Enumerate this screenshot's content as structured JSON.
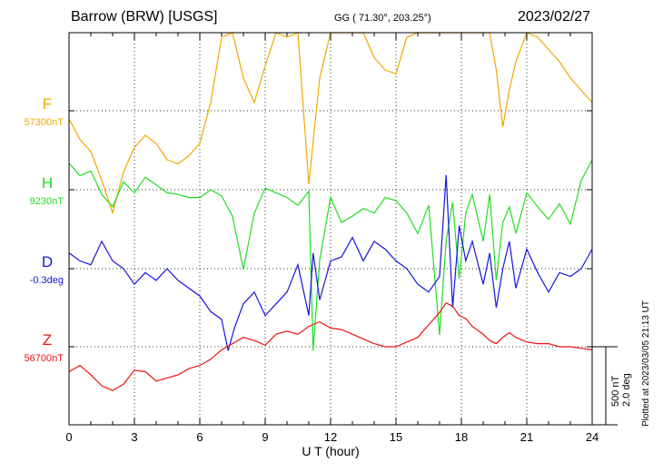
{
  "header": {
    "title": "Barrow (BRW)  [USGS]",
    "coords": "GG ( 71.30°, 203.25°)",
    "date": "2023/02/27"
  },
  "footer": {
    "plotted": "Plotted at 2023/03/05 21:13 UT"
  },
  "scale_bar": {
    "line1": "500 nT",
    "line2": "2.0 deg"
  },
  "chart_data": {
    "type": "line",
    "xlabel": "U T (hour)",
    "xlim": [
      0,
      24
    ],
    "x_ticks": [
      "0",
      "3",
      "6",
      "9",
      "12",
      "15",
      "18",
      "21",
      "24"
    ],
    "grid": true,
    "series": [
      {
        "name": "F",
        "baseline": "57300nT",
        "color": "#f0a800",
        "x": [
          0,
          0.5,
          1,
          1.5,
          2,
          2.5,
          3,
          3.5,
          4,
          4.5,
          5,
          5.5,
          6,
          6.5,
          7,
          7.5,
          8,
          8.5,
          9,
          9.5,
          10,
          10.5,
          11,
          11.5,
          12,
          12.5,
          13,
          13.5,
          14,
          14.5,
          15,
          15.5,
          16,
          16.5,
          17,
          17.3,
          17.6,
          17.9,
          18.2,
          18.5,
          19,
          19.3,
          19.6,
          19.9,
          20.2,
          20.5,
          21,
          21.5,
          22,
          22.5,
          23,
          23.5,
          24
        ],
        "y": [
          57280,
          57230,
          57200,
          57130,
          57050,
          57150,
          57210,
          57240,
          57220,
          57180,
          57170,
          57190,
          57220,
          57320,
          57480,
          57560,
          57380,
          57320,
          57410,
          57560,
          57480,
          57520,
          57120,
          57380,
          57620,
          57520,
          57560,
          57500,
          57430,
          57400,
          57390,
          57480,
          57540,
          57580,
          57720,
          57780,
          57860,
          57820,
          57780,
          57720,
          57640,
          57540,
          57400,
          57260,
          57350,
          57420,
          57560,
          57480,
          57450,
          57420,
          57380,
          57350,
          57320
        ]
      },
      {
        "name": "H",
        "baseline": "9230nT",
        "color": "#22dd22",
        "x": [
          0,
          0.5,
          1,
          1.5,
          2,
          2.5,
          3,
          3.5,
          4,
          4.5,
          5,
          5.5,
          6,
          6.5,
          7,
          7.5,
          8,
          8.5,
          9,
          9.5,
          10,
          10.5,
          11,
          11.2,
          11.5,
          12,
          12.5,
          13,
          13.5,
          14,
          14.5,
          15,
          15.5,
          16,
          16.5,
          17,
          17.3,
          17.6,
          17.9,
          18.2,
          18.5,
          19,
          19.3,
          19.6,
          19.9,
          20.2,
          20.5,
          21,
          21.5,
          22,
          22.5,
          23,
          23.5,
          24
        ],
        "y": [
          9400,
          9320,
          9350,
          9200,
          9120,
          9280,
          9210,
          9310,
          9260,
          9210,
          9200,
          9180,
          9180,
          9230,
          9190,
          9060,
          8720,
          9080,
          9240,
          9210,
          9180,
          9130,
          9220,
          8200,
          8780,
          9180,
          9020,
          9060,
          9110,
          9080,
          9180,
          9160,
          9080,
          8950,
          9130,
          8300,
          8900,
          9150,
          8660,
          9080,
          9200,
          8900,
          9200,
          8650,
          9020,
          9120,
          8950,
          9210,
          9120,
          9040,
          9140,
          9010,
          9290,
          9420
        ]
      },
      {
        "name": "D",
        "baseline": "-0.3deg",
        "color": "#1515dd",
        "x": [
          0,
          0.5,
          1,
          1.5,
          2,
          2.5,
          3,
          3.5,
          4,
          4.5,
          5,
          5.5,
          6,
          6.5,
          7,
          7.3,
          7.6,
          8,
          8.5,
          9,
          9.5,
          10,
          10.5,
          11,
          11.2,
          11.5,
          12,
          12.5,
          13,
          13.5,
          14,
          14.5,
          15,
          15.5,
          16,
          16.5,
          17,
          17.3,
          17.6,
          17.9,
          18.2,
          18.5,
          19,
          19.3,
          19.6,
          19.9,
          20.2,
          20.5,
          21,
          21.5,
          22,
          22.5,
          23,
          23.5,
          24
        ],
        "y": [
          -0.1,
          -0.2,
          -0.25,
          0.05,
          -0.2,
          -0.3,
          -0.5,
          -0.35,
          -0.45,
          -0.3,
          -0.45,
          -0.55,
          -0.65,
          -0.85,
          -0.95,
          -1.35,
          -1.05,
          -0.75,
          -0.6,
          -0.9,
          -0.75,
          -0.6,
          -0.25,
          -0.9,
          -0.1,
          -0.7,
          -0.2,
          -0.15,
          0.1,
          -0.2,
          0.05,
          -0.05,
          -0.2,
          -0.3,
          -0.5,
          -0.6,
          -0.4,
          0.9,
          -0.8,
          0.25,
          -0.2,
          0.05,
          -0.5,
          -0.1,
          -0.8,
          -0.3,
          0.05,
          -0.55,
          -0.05,
          -0.35,
          -0.6,
          -0.35,
          -0.4,
          -0.3,
          -0.05
        ]
      },
      {
        "name": "Z",
        "baseline": "56700nT",
        "color": "#ee1111",
        "x": [
          0,
          0.5,
          1,
          1.5,
          2,
          2.5,
          3,
          3.5,
          4,
          4.5,
          5,
          5.5,
          6,
          6.5,
          7,
          7.5,
          8,
          8.5,
          9,
          9.5,
          10,
          10.5,
          11,
          11.5,
          12,
          12.5,
          13,
          13.5,
          14,
          14.5,
          15,
          15.5,
          16,
          16.5,
          17,
          17.3,
          17.6,
          17.9,
          18.2,
          18.5,
          19,
          19.3,
          19.6,
          19.9,
          20.2,
          20.5,
          21,
          21.5,
          22,
          22.5,
          23,
          23.5,
          24
        ],
        "y": [
          56540,
          56580,
          56520,
          56450,
          56420,
          56460,
          56550,
          56540,
          56480,
          56500,
          56520,
          56560,
          56580,
          56620,
          56680,
          56720,
          56760,
          56740,
          56710,
          56780,
          56800,
          56780,
          56830,
          56860,
          56820,
          56810,
          56780,
          56750,
          56720,
          56700,
          56700,
          56730,
          56760,
          56840,
          56920,
          56980,
          56960,
          56900,
          56880,
          56830,
          56780,
          56740,
          56720,
          56760,
          56790,
          56760,
          56730,
          56720,
          56720,
          56700,
          56700,
          56690,
          56680
        ]
      }
    ]
  }
}
